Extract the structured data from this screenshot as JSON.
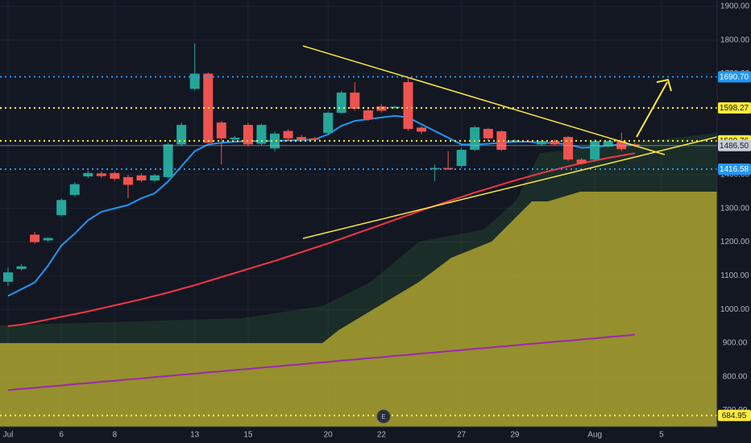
{
  "chart_data": {
    "type": "candlestick",
    "categories": [
      "Jul",
      null,
      null,
      null,
      "6",
      null,
      null,
      null,
      "8",
      null,
      null,
      null,
      null,
      null,
      "13",
      null,
      null,
      null,
      "15",
      null,
      null,
      null,
      null,
      null,
      "20",
      null,
      null,
      null,
      "22",
      null,
      null,
      null,
      null,
      null,
      "27",
      null,
      null,
      null,
      "29",
      null,
      null,
      null,
      null,
      null,
      "Aug",
      null,
      null,
      null,
      null,
      "5"
    ],
    "open": [
      1082,
      1120,
      1222,
      1205,
      1280,
      1340,
      1395,
      1404,
      1405,
      1393,
      1398,
      1383,
      1393,
      1490,
      1655,
      1700,
      1555,
      1505,
      1548,
      1492,
      1478,
      1530,
      1512,
      1508,
      1524,
      1584,
      1644,
      1591,
      1603,
      1598,
      1675,
      1540,
      1416,
      1420,
      1426,
      1474,
      1536,
      1529,
      1498,
      1500,
      1490,
      1500,
      1512,
      1445,
      1445,
      1484,
      1500,
      1490,
      null,
      null
    ],
    "high": [
      1125,
      1135,
      1230,
      1215,
      1330,
      1378,
      1412,
      1410,
      1410,
      1400,
      1405,
      1402,
      1495,
      1555,
      1790,
      1705,
      1560,
      1515,
      1555,
      1552,
      1528,
      1535,
      1518,
      1512,
      1588,
      1650,
      1675,
      1600,
      1610,
      1605,
      1690,
      1545,
      1430,
      1470,
      1480,
      1545,
      1540,
      1532,
      1505,
      1504,
      1502,
      1505,
      1515,
      1450,
      1505,
      1502,
      1525,
      1495,
      null,
      null
    ],
    "low": [
      1070,
      1115,
      1195,
      1200,
      1275,
      1335,
      1390,
      1390,
      1382,
      1330,
      1378,
      1378,
      1388,
      1485,
      1650,
      1490,
      1430,
      1500,
      1485,
      1488,
      1470,
      1500,
      1500,
      1500,
      1520,
      1580,
      1590,
      1560,
      1585,
      1595,
      1530,
      1520,
      1380,
      1414,
      1420,
      1470,
      1500,
      1470,
      1495,
      1496,
      1485,
      1488,
      1440,
      1430,
      1440,
      1480,
      1470,
      1482,
      null,
      null
    ],
    "close": [
      1110,
      1128,
      1200,
      1212,
      1325,
      1372,
      1405,
      1396,
      1388,
      1370,
      1383,
      1398,
      1490,
      1548,
      1700,
      1495,
      1508,
      1510,
      1490,
      1548,
      1522,
      1508,
      1505,
      1504,
      1584,
      1644,
      1596,
      1565,
      1590,
      1602,
      1536,
      1528,
      1420,
      1416,
      1474,
      1541,
      1508,
      1474,
      1502,
      1498,
      1500,
      1490,
      1445,
      1433,
      1500,
      1500,
      1476,
      1486,
      null,
      null
    ],
    "up_color": "#26a69a",
    "down_color": "#ef5350",
    "lines": [
      {
        "color": "#2196f3",
        "values": [
          1040,
          1060,
          1080,
          1130,
          1190,
          1225,
          1265,
          1290,
          1300,
          1310,
          1330,
          1345,
          1380,
          1425,
          1470,
          1490,
          1495,
          1498,
          1500,
          1500,
          1500,
          1502,
          1503,
          1505,
          1520,
          1545,
          1560,
          1565,
          1570,
          1575,
          1570,
          1550,
          1530,
          1510,
          1490,
          1490,
          1492,
          1495,
          1498,
          1498,
          1495,
          1494,
          1490,
          1480,
          1482,
          1487,
          1490,
          1488,
          null,
          null
        ]
      },
      {
        "color": "#f23645",
        "values": [
          950,
          955,
          962,
          970,
          978,
          986,
          994,
          1003,
          1012,
          1021,
          1030,
          1040,
          1050,
          1061,
          1072,
          1084,
          1096,
          1108,
          1120,
          1132,
          1144,
          1157,
          1170,
          1183,
          1196,
          1210,
          1224,
          1238,
          1252,
          1266,
          1280,
          1294,
          1308,
          1321,
          1334,
          1347,
          1359,
          1371,
          1383,
          1394,
          1405,
          1415,
          1425,
          1434,
          1442,
          1450,
          1457,
          1464,
          null,
          null
        ]
      },
      {
        "color": "#9c27b0",
        "values": [
          760,
          764,
          767,
          771,
          774,
          778,
          781,
          785,
          788,
          792,
          795,
          799,
          802,
          806,
          809,
          813,
          816,
          820,
          823,
          827,
          830,
          834,
          837,
          841,
          844,
          848,
          851,
          855,
          858,
          862,
          865,
          869,
          872,
          876,
          879,
          883,
          886,
          890,
          893,
          897,
          900,
          904,
          907,
          911,
          914,
          918,
          921,
          925,
          null,
          null
        ]
      }
    ],
    "ylim": [
      651,
      1919
    ],
    "yticks": [
      {
        "value": 1900,
        "label": "1900.00"
      },
      {
        "value": 1800,
        "label": "1800.00"
      },
      {
        "value": 1700,
        "label": "1700.00"
      },
      {
        "value": 1600,
        "label": "1600.00"
      },
      {
        "value": 1500,
        "label": "1500.00"
      },
      {
        "value": 1400,
        "label": "1400.00"
      },
      {
        "value": 1300,
        "label": "1300.00"
      },
      {
        "value": 1200,
        "label": "1200.00"
      },
      {
        "value": 1100,
        "label": "1100.00"
      },
      {
        "value": 1000,
        "label": "1000.00"
      },
      {
        "value": 900,
        "label": "900.00"
      },
      {
        "value": 800,
        "label": "800.00"
      },
      {
        "value": 700,
        "label": "700.00"
      }
    ],
    "grid": true,
    "price_lines": [
      {
        "value": 1690.7,
        "label": "1690.70",
        "color": "#2196f3",
        "style": "dotted"
      },
      {
        "value": 1598.27,
        "color": "#ffeb3b",
        "style": "dotted"
      },
      {
        "value": 1500.76,
        "color": "#ffeb3b",
        "style": "dotted"
      },
      {
        "value": 1486.5,
        "label": "1486.50",
        "color": "#c8ccd6",
        "style": "solid"
      },
      {
        "value": 1416.58,
        "color": "#2196f3",
        "style": "dotted"
      },
      {
        "value": 684.95,
        "color": "#ffeb3b",
        "style": "dotted"
      }
    ],
    "event_marker": "E"
  }
}
